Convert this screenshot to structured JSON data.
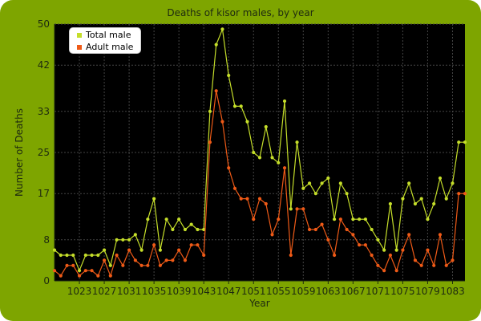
{
  "chart_data": {
    "type": "line",
    "title": "Deaths of kisor males, by year",
    "xlabel": "Year",
    "ylabel": "Number of Deaths",
    "xlim": [
      1019,
      1085
    ],
    "ylim": [
      0,
      50
    ],
    "yticks": [
      0,
      8,
      17,
      25,
      33,
      42,
      50
    ],
    "xticks": [
      1023,
      1027,
      1031,
      1035,
      1039,
      1043,
      1047,
      1051,
      1055,
      1059,
      1063,
      1067,
      1071,
      1075,
      1079,
      1083
    ],
    "grid": true,
    "legend_position": "top-left",
    "x": [
      1019,
      1020,
      1021,
      1022,
      1023,
      1024,
      1025,
      1026,
      1027,
      1028,
      1029,
      1030,
      1031,
      1032,
      1033,
      1034,
      1035,
      1036,
      1037,
      1038,
      1039,
      1040,
      1041,
      1042,
      1043,
      1044,
      1045,
      1046,
      1047,
      1048,
      1049,
      1050,
      1051,
      1052,
      1053,
      1054,
      1055,
      1056,
      1057,
      1058,
      1059,
      1060,
      1061,
      1062,
      1063,
      1064,
      1065,
      1066,
      1067,
      1068,
      1069,
      1070,
      1071,
      1072,
      1073,
      1074,
      1075,
      1076,
      1077,
      1078,
      1079,
      1080,
      1081,
      1082,
      1083,
      1084,
      1085
    ],
    "series": [
      {
        "name": "Total male",
        "color": "#c5de2a",
        "values": [
          6,
          5,
          5,
          5,
          2,
          5,
          5,
          5,
          6,
          3,
          8,
          8,
          8,
          9,
          6,
          12,
          16,
          6,
          12,
          10,
          12,
          10,
          11,
          10,
          10,
          33,
          46,
          49,
          40,
          34,
          34,
          31,
          25,
          24,
          30,
          24,
          23,
          35,
          14,
          27,
          18,
          19,
          17,
          19,
          20,
          12,
          19,
          17,
          12,
          12,
          12,
          10,
          8,
          6,
          15,
          6,
          16,
          19,
          15,
          16,
          12,
          15,
          20,
          16,
          19,
          27,
          27
        ]
      },
      {
        "name": "Adult male",
        "color": "#ef5a17",
        "values": [
          2,
          1,
          3,
          3,
          1,
          2,
          2,
          1,
          4,
          1,
          5,
          3,
          6,
          4,
          3,
          3,
          7,
          3,
          4,
          4,
          6,
          4,
          7,
          7,
          5,
          27,
          37,
          31,
          22,
          18,
          16,
          16,
          12,
          16,
          15,
          9,
          12,
          22,
          5,
          14,
          14,
          10,
          10,
          11,
          8,
          5,
          12,
          10,
          9,
          7,
          7,
          5,
          3,
          2,
          5,
          2,
          6,
          9,
          4,
          3,
          6,
          3,
          9,
          3,
          4,
          17,
          17
        ]
      }
    ]
  },
  "legend": {
    "items": [
      {
        "label": "Total male",
        "color": "#c5de2a"
      },
      {
        "label": "Adult male",
        "color": "#ef5a17"
      }
    ]
  }
}
